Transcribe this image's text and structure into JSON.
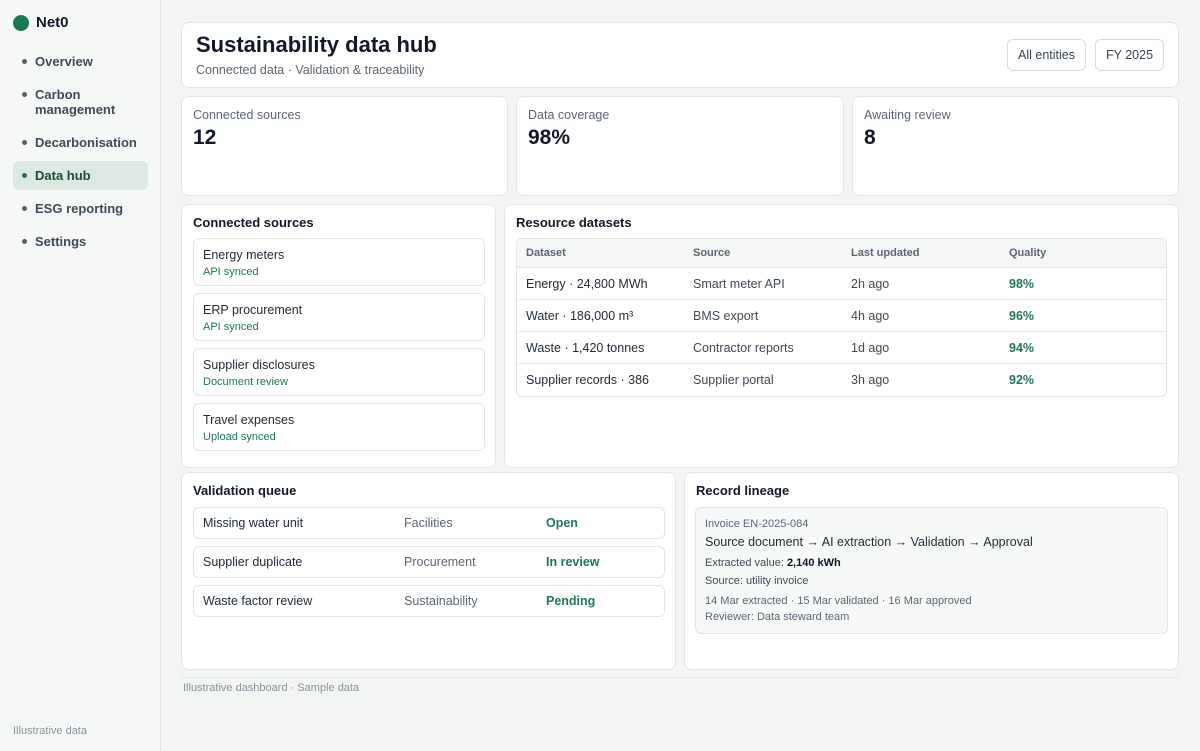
{
  "app": {
    "name": "Net0",
    "brand_color": "#1c7a52"
  },
  "sidebar": {
    "items": [
      {
        "label": "Overview",
        "active": false
      },
      {
        "label": "Carbon management",
        "active": false
      },
      {
        "label": "Decarbonisation",
        "active": false
      },
      {
        "label": "Data hub",
        "active": true
      },
      {
        "label": "ESG reporting",
        "active": false
      },
      {
        "label": "Settings",
        "active": false
      }
    ],
    "footer": "Illustrative data"
  },
  "header": {
    "title": "Sustainability data hub",
    "subtitle": "Connected data · Validation & traceability",
    "entity_filter": "All entities",
    "period_filter": "FY 2025"
  },
  "stats": [
    {
      "label": "Connected sources",
      "value": "12"
    },
    {
      "label": "Data coverage",
      "value": "98%"
    },
    {
      "label": "Awaiting review",
      "value": "8"
    }
  ],
  "connected_sources": {
    "title": "Connected sources",
    "items": [
      {
        "name": "Energy meters",
        "status": "API synced"
      },
      {
        "name": "ERP procurement",
        "status": "API synced"
      },
      {
        "name": "Supplier disclosures",
        "status": "Document review"
      },
      {
        "name": "Travel expenses",
        "status": "Upload synced"
      }
    ]
  },
  "datasets": {
    "title": "Resource datasets",
    "columns": [
      "Dataset",
      "Source",
      "Last updated",
      "Quality"
    ],
    "rows": [
      [
        "Energy · 24,800 MWh",
        "Smart meter API",
        "2h ago",
        "98%"
      ],
      [
        "Water · 186,000 m³",
        "BMS export",
        "4h ago",
        "96%"
      ],
      [
        "Waste · 1,420 tonnes",
        "Contractor reports",
        "1d ago",
        "94%"
      ],
      [
        "Supplier records · 386",
        "Supplier portal",
        "3h ago",
        "92%"
      ]
    ]
  },
  "validation_queue": {
    "title": "Validation queue",
    "items": [
      {
        "issue": "Missing water unit",
        "team": "Facilities",
        "status": "Open"
      },
      {
        "issue": "Supplier duplicate",
        "team": "Procurement",
        "status": "In review"
      },
      {
        "issue": "Waste factor review",
        "team": "Sustainability",
        "status": "Pending"
      }
    ]
  },
  "lineage": {
    "title": "Record lineage",
    "record_id": "Invoice EN-2025-084",
    "flow": "Source document → AI extraction → Validation → Approval",
    "extracted_label": "Extracted value:",
    "extracted_value": "2,140 kWh",
    "source": "Source: utility invoice",
    "dates": "14 Mar extracted · 15 Mar validated · 16 Mar approved",
    "reviewer": "Reviewer: Data steward team"
  },
  "footnote": "Illustrative dashboard · Sample data"
}
